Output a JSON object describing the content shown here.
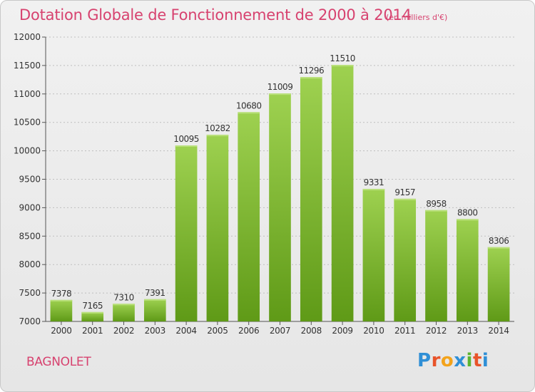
{
  "header": {
    "title": "Dotation Globale de Fonctionnement de 2000 à 2014",
    "unit_note": "(en milliers d'€)"
  },
  "footer": {
    "commune": "BAGNOLET",
    "logo_text": "Proxiti"
  },
  "colors": {
    "title": "#d7426f",
    "bar_top": "#9ed150",
    "bar_bottom": "#5f9a17",
    "grid": "#bfbfbf",
    "axis_text": "#333333"
  },
  "chart_data": {
    "type": "bar",
    "categories": [
      "2000",
      "2001",
      "2002",
      "2003",
      "2004",
      "2005",
      "2006",
      "2007",
      "2008",
      "2009",
      "2010",
      "2011",
      "2012",
      "2013",
      "2014"
    ],
    "values": [
      7378,
      7165,
      7310,
      7391,
      10095,
      10282,
      10680,
      11009,
      11296,
      11510,
      9331,
      9157,
      8958,
      8800,
      8306
    ],
    "ylim": [
      7000,
      12000
    ],
    "yticks": [
      7000,
      7500,
      8000,
      8500,
      9000,
      9500,
      10000,
      10500,
      11000,
      11500,
      12000
    ],
    "grid": true,
    "title": "Dotation Globale de Fonctionnement de 2000 à 2014",
    "xlabel": "",
    "ylabel": ""
  }
}
